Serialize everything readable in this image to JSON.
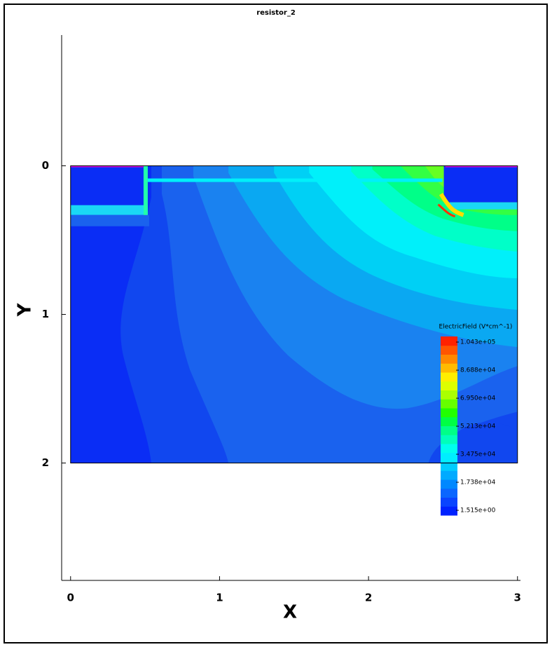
{
  "chart_data": {
    "type": "contour",
    "title": "resistor_2",
    "x_label": "X",
    "y_label": "Y",
    "xlim": [
      -0.06,
      3.02
    ],
    "ylim": [
      -0.88,
      2.79
    ],
    "y_inverted": true,
    "xticks": [
      0,
      1,
      2,
      3
    ],
    "yticks": [
      0,
      1,
      2
    ],
    "domain": {
      "x": [
        0,
        3
      ],
      "y": [
        0,
        2
      ]
    },
    "colorbar": {
      "title": "ElectricField (V*cm^-1)",
      "range": [
        1.515,
        104300
      ],
      "ticks": [
        {
          "value": 1.515,
          "label": "1.515e+00"
        },
        {
          "value": 17380,
          "label": "1.738e+04"
        },
        {
          "value": 34750,
          "label": "3.475e+04"
        },
        {
          "value": 52130,
          "label": "5.213e+04"
        },
        {
          "value": 69500,
          "label": "6.950e+04"
        },
        {
          "value": 86880,
          "label": "8.688e+04"
        },
        {
          "value": 104300,
          "label": "1.043e+05"
        }
      ],
      "colors": [
        "#0022ff",
        "#0a44ff",
        "#0a66ff",
        "#0088ff",
        "#00aaff",
        "#00ccff",
        "#00eeff",
        "#00ffee",
        "#00ffbb",
        "#00ff88",
        "#00ff44",
        "#22ff00",
        "#66ff00",
        "#aaff00",
        "#ddff00",
        "#ffee00",
        "#ffbb00",
        "#ff8800",
        "#ff5500",
        "#ff2200"
      ]
    }
  }
}
